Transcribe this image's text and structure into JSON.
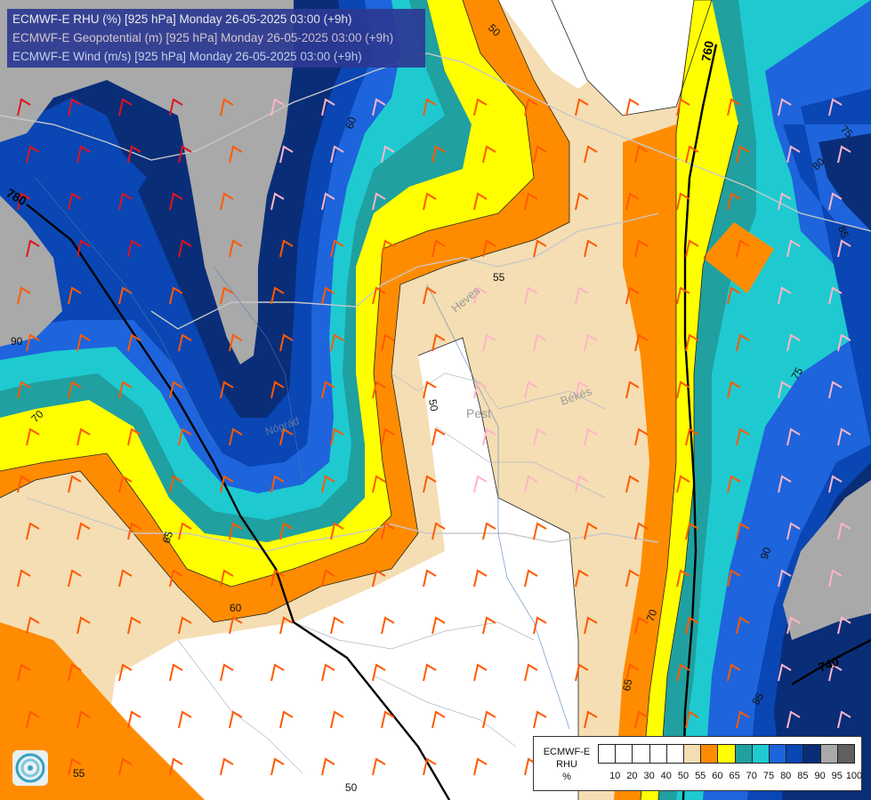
{
  "header": {
    "line1": "ECMWF-E RHU (%) [925 hPa] Monday 26-05-2025 03:00 (+9h)",
    "line2": "ECMWF-E Geopotential (m) [925 hPa] Monday 26-05-2025 03:00 (+9h)",
    "line3": "ECMWF-E Wind (m/s) [925 hPa] Monday 26-05-2025 03:00 (+9h)"
  },
  "legend": {
    "title_line1": "ECMWF-E",
    "title_line2": "RHU",
    "title_line3": "%",
    "ticks": [
      "10",
      "20",
      "30",
      "40",
      "50",
      "55",
      "60",
      "65",
      "70",
      "75",
      "80",
      "85",
      "90",
      "95",
      "100"
    ],
    "colors": [
      "#ffffff",
      "#ffffff",
      "#ffffff",
      "#ffffff",
      "#ffffff",
      "#f5deb3",
      "#ff8c00",
      "#ffff00",
      "#20a0a0",
      "#1ecad0",
      "#1e64dc",
      "#0a46b4",
      "#0a2d78",
      "#a9a9a9",
      "#606060"
    ]
  },
  "contour_labels": {
    "c50_top": "50",
    "c60_a": "60",
    "c55_mid": "55",
    "c50_mid": "50",
    "c70_left": "70",
    "c90_left": "90",
    "c65_left": "65",
    "c60_bot": "60",
    "c55_bot": "55",
    "c50_bot": "50",
    "c75_r1": "75",
    "c80_r": "80",
    "c85_r1": "85",
    "c75_r2": "75",
    "c90_r": "90",
    "c70_br": "70",
    "c65_br": "65",
    "c85_br": "85"
  },
  "geopotential_labels": {
    "g780": "780",
    "g760": "760",
    "g740": "740"
  },
  "cities": {
    "heves": "Heves",
    "pest": "Pest",
    "bekes": "Békés",
    "nograd": "Nógrád"
  },
  "colors": {
    "c_white": "#ffffff",
    "c_tan": "#f5deb3",
    "c_orange": "#ff8c00",
    "c_yellow": "#ffff00",
    "c_teal": "#1ecad0",
    "c_dteal": "#20a0a0",
    "c_blue": "#1e64dc",
    "c_mblue": "#0a46b4",
    "c_navy": "#0a2d78",
    "c_gray": "#a9a9a9",
    "c_barb_orange": "#ff5a00",
    "c_barb_red": "#e0141e",
    "c_barb_pink": "#ffb4c8"
  }
}
